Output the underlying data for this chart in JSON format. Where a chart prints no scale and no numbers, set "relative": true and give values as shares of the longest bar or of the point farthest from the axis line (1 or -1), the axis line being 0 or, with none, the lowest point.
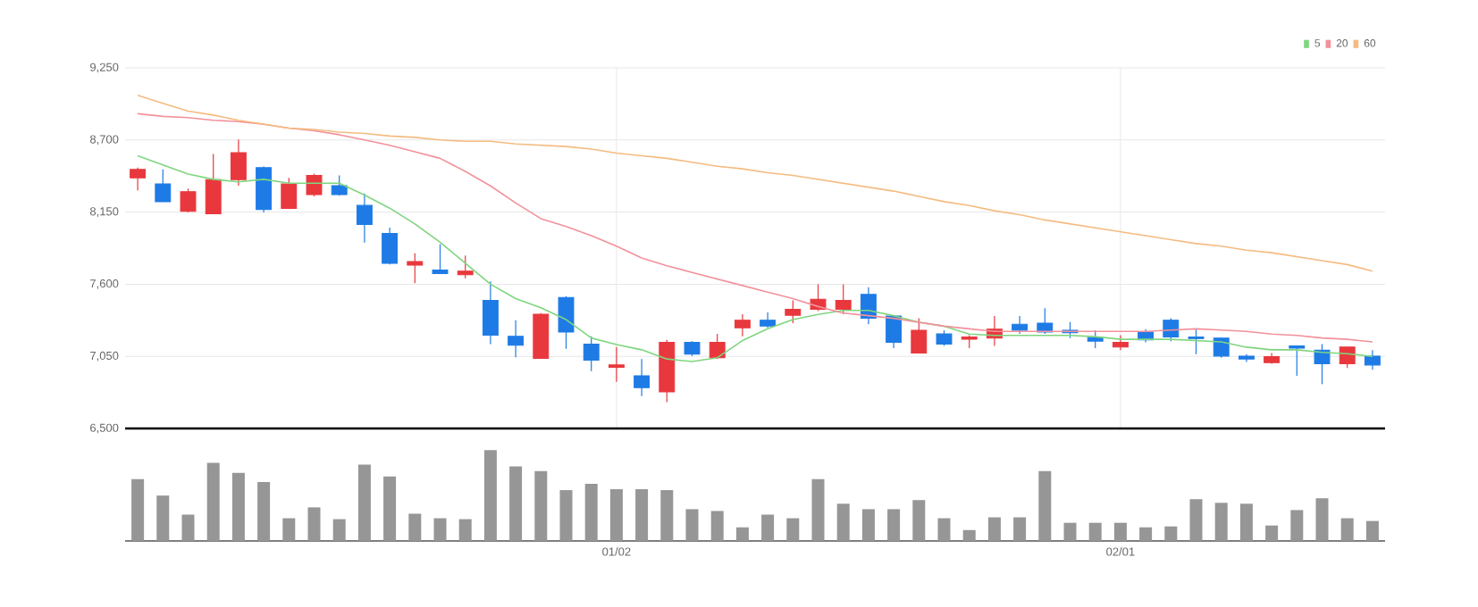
{
  "chart_data": [
    {
      "type": "candlestick",
      "categories": [
        null,
        null,
        null,
        null,
        null,
        null,
        null,
        null,
        null,
        null,
        null,
        null,
        null,
        null,
        null,
        null,
        null,
        null,
        null,
        null,
        null,
        null,
        null,
        null,
        null,
        null,
        null,
        null,
        null,
        null,
        null,
        null,
        null,
        null,
        null,
        null,
        null,
        null,
        null,
        null,
        null,
        null,
        null,
        null,
        null,
        null,
        null,
        null,
        null,
        null
      ],
      "ohlc": [
        [
          8411,
          8489,
          8315,
          8475
        ],
        [
          8365,
          8475,
          8229,
          8229
        ],
        [
          8156,
          8329,
          8147,
          8306
        ],
        [
          8137,
          8593,
          8137,
          8397
        ],
        [
          8397,
          8703,
          8352,
          8603
        ],
        [
          8489,
          8498,
          8147,
          8169
        ],
        [
          8178,
          8411,
          8178,
          8365
        ],
        [
          8283,
          8443,
          8270,
          8429
        ],
        [
          8352,
          8429,
          8274,
          8283
        ],
        [
          8201,
          8292,
          7918,
          8055
        ],
        [
          7987,
          8032,
          7750,
          7759
        ],
        [
          7745,
          7836,
          7608,
          7773
        ],
        [
          7709,
          7905,
          7681,
          7681
        ],
        [
          7672,
          7818,
          7645,
          7700
        ],
        [
          7476,
          7622,
          7143,
          7212
        ],
        [
          7203,
          7326,
          7043,
          7134
        ],
        [
          7034,
          7380,
          7034,
          7371
        ],
        [
          7499,
          7508,
          7107,
          7235
        ],
        [
          7143,
          7203,
          6938,
          7020
        ],
        [
          6966,
          7121,
          6856,
          6985
        ],
        [
          6902,
          7030,
          6747,
          6811
        ],
        [
          6779,
          7176,
          6701,
          7157
        ],
        [
          7157,
          7166,
          7052,
          7066
        ],
        [
          7039,
          7221,
          7030,
          7157
        ],
        [
          7267,
          7372,
          7203,
          7326
        ],
        [
          7326,
          7385,
          7267,
          7281
        ],
        [
          7363,
          7477,
          7303,
          7408
        ],
        [
          7408,
          7600,
          7395,
          7486
        ],
        [
          7408,
          7600,
          7372,
          7477
        ],
        [
          7522,
          7577,
          7294,
          7340
        ],
        [
          7358,
          7358,
          7112,
          7157
        ],
        [
          7075,
          7340,
          7075,
          7249
        ],
        [
          7221,
          7249,
          7130,
          7144
        ],
        [
          7180,
          7212,
          7112,
          7198
        ],
        [
          7189,
          7358,
          7130,
          7258
        ],
        [
          7294,
          7358,
          7221,
          7249
        ],
        [
          7303,
          7417,
          7221,
          7235
        ],
        [
          7249,
          7312,
          7189,
          7230
        ],
        [
          7194,
          7249,
          7112,
          7166
        ],
        [
          7121,
          7212,
          7098,
          7157
        ],
        [
          7235,
          7258,
          7157,
          7176
        ],
        [
          7326,
          7340,
          7166,
          7198
        ],
        [
          7198,
          7258,
          7066,
          7185
        ],
        [
          7189,
          7189,
          7039,
          7052
        ],
        [
          7052,
          7066,
          7007,
          7030
        ],
        [
          7002,
          7075,
          6993,
          7048
        ],
        [
          7130,
          7130,
          6902,
          7112
        ],
        [
          7098,
          7144,
          6838,
          6993
        ],
        [
          6993,
          7121,
          6961,
          7121
        ],
        [
          7052,
          7098,
          6948,
          6984
        ]
      ],
      "colors": [
        "#e8383d",
        "#1e7be6",
        "#e8383d",
        "#e8383d",
        "#e8383d",
        "#1e7be6",
        "#e8383d",
        "#e8383d",
        "#1e7be6",
        "#1e7be6",
        "#1e7be6",
        "#e8383d",
        "#1e7be6",
        "#e8383d",
        "#1e7be6",
        "#1e7be6",
        "#e8383d",
        "#1e7be6",
        "#1e7be6",
        "#e8383d",
        "#1e7be6",
        "#e8383d",
        "#1e7be6",
        "#e8383d",
        "#e8383d",
        "#1e7be6",
        "#e8383d",
        "#e8383d",
        "#e8383d",
        "#1e7be6",
        "#1e7be6",
        "#e8383d",
        "#1e7be6",
        "#e8383d",
        "#e8383d",
        "#1e7be6",
        "#1e7be6",
        "#1e7be6",
        "#1e7be6",
        "#e8383d",
        "#1e7be6",
        "#1e7be6",
        "#1e7be6",
        "#1e7be6",
        "#1e7be6",
        "#e8383d",
        "#1e7be6",
        "#1e7be6",
        "#e8383d",
        "#1e7be6"
      ],
      "series": [
        {
          "type": "line",
          "name": "5",
          "color": "#7fd67f",
          "values": [
            8580,
            8510,
            8440,
            8400,
            8380,
            8400,
            8370,
            8370,
            8370,
            8280,
            8180,
            8060,
            7920,
            7760,
            7600,
            7490,
            7420,
            7330,
            7190,
            7140,
            7100,
            7030,
            7010,
            7040,
            7170,
            7260,
            7330,
            7370,
            7400,
            7400,
            7360,
            7310,
            7280,
            7220,
            7210,
            7210,
            7210,
            7210,
            7200,
            7180,
            7180,
            7180,
            7170,
            7160,
            7120,
            7100,
            7100,
            7080,
            7070,
            7050
          ]
        },
        {
          "type": "line",
          "name": "20",
          "color": "#f2919b",
          "values": [
            8900,
            8880,
            8870,
            8850,
            8840,
            8820,
            8790,
            8770,
            8740,
            8700,
            8660,
            8610,
            8560,
            8460,
            8350,
            8220,
            8100,
            8040,
            7970,
            7890,
            7800,
            7740,
            7690,
            7640,
            7590,
            7540,
            7490,
            7430,
            7380,
            7360,
            7340,
            7310,
            7280,
            7260,
            7240,
            7240,
            7240,
            7240,
            7240,
            7240,
            7240,
            7250,
            7260,
            7250,
            7240,
            7220,
            7210,
            7190,
            7180,
            7160
          ]
        },
        {
          "type": "line",
          "name": "60",
          "color": "#f5bb80",
          "values": [
            9040,
            8980,
            8920,
            8890,
            8850,
            8820,
            8790,
            8780,
            8760,
            8750,
            8730,
            8720,
            8700,
            8690,
            8690,
            8670,
            8660,
            8650,
            8630,
            8600,
            8580,
            8560,
            8530,
            8500,
            8480,
            8450,
            8430,
            8400,
            8370,
            8340,
            8310,
            8270,
            8230,
            8200,
            8160,
            8130,
            8090,
            8060,
            8030,
            8000,
            7970,
            7940,
            7910,
            7890,
            7860,
            7840,
            7810,
            7780,
            7750,
            7700
          ]
        }
      ],
      "ylim": [
        6500,
        9250
      ],
      "yticks": [
        {
          "value": 6500,
          "label": "6,500"
        },
        {
          "value": 7050,
          "label": "7,050"
        },
        {
          "value": 7600,
          "label": "7,600"
        },
        {
          "value": 8150,
          "label": "8,150"
        },
        {
          "value": 8700,
          "label": "8,700"
        },
        {
          "value": 9250,
          "label": "9,250"
        }
      ],
      "grid": true,
      "legend": "top right",
      "tick_labels": "y"
    },
    {
      "type": "bar",
      "categories": [
        null,
        null,
        null,
        null,
        null,
        null,
        null,
        null,
        null,
        null,
        null,
        null,
        null,
        null,
        null,
        null,
        null,
        null,
        null,
        "01/02",
        null,
        null,
        null,
        null,
        null,
        null,
        null,
        null,
        null,
        null,
        null,
        null,
        null,
        null,
        null,
        null,
        null,
        null,
        null,
        "02/01",
        null,
        null,
        null,
        null,
        null,
        null,
        null,
        null,
        null,
        null
      ],
      "values": [
        0.68,
        0.5,
        0.29,
        0.86,
        0.75,
        0.65,
        0.25,
        0.37,
        0.24,
        0.84,
        0.71,
        0.3,
        0.25,
        0.24,
        1,
        0.82,
        0.77,
        0.56,
        0.63,
        0.57,
        0.57,
        0.56,
        0.35,
        0.33,
        0.15,
        0.29,
        0.25,
        0.68,
        0.41,
        0.35,
        0.35,
        0.45,
        0.25,
        0.12,
        0.26,
        0.26,
        0.77,
        0.2,
        0.2,
        0.2,
        0.15,
        0.16,
        0.46,
        0.42,
        0.41,
        0.17,
        0.34,
        0.47,
        0.25,
        0.22
      ],
      "color": "#969696",
      "relative": true,
      "tick_labels": "x"
    }
  ]
}
